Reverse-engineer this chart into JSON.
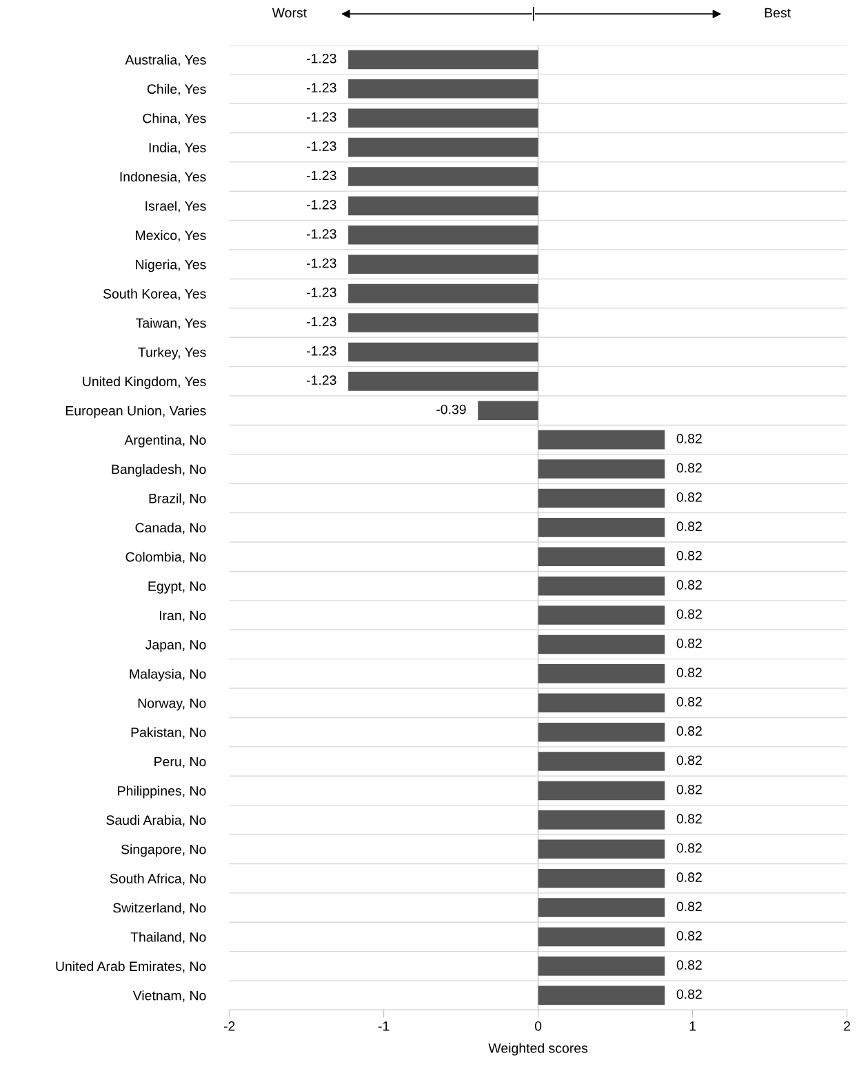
{
  "chart_data": {
    "type": "bar",
    "orientation": "horizontal",
    "xlabel": "Weighted scores",
    "categories": [
      "Australia, Yes",
      "Chile, Yes",
      "China, Yes",
      "India, Yes",
      "Indonesia, Yes",
      "Israel, Yes",
      "Mexico, Yes",
      "Nigeria, Yes",
      "South Korea, Yes",
      "Taiwan, Yes",
      "Turkey, Yes",
      "United Kingdom, Yes",
      "European Union, Varies",
      "Argentina, No",
      "Bangladesh, No",
      "Brazil, No",
      "Canada, No",
      "Colombia, No",
      "Egypt, No",
      "Iran, No",
      "Japan, No",
      "Malaysia, No",
      "Norway, No",
      "Pakistan, No",
      "Peru, No",
      "Philippines, No",
      "Saudi Arabia, No",
      "Singapore, No",
      "South Africa, No",
      "Switzerland, No",
      "Thailand, No",
      "United Arab Emirates, No",
      "Vietnam, No"
    ],
    "values": [
      -1.23,
      -1.23,
      -1.23,
      -1.23,
      -1.23,
      -1.23,
      -1.23,
      -1.23,
      -1.23,
      -1.23,
      -1.23,
      -1.23,
      -0.39,
      0.82,
      0.82,
      0.82,
      0.82,
      0.82,
      0.82,
      0.82,
      0.82,
      0.82,
      0.82,
      0.82,
      0.82,
      0.82,
      0.82,
      0.82,
      0.82,
      0.82,
      0.82,
      0.82,
      0.82
    ],
    "color": "#555555",
    "xlim": [
      -2,
      2
    ],
    "xticks": [
      -2,
      -1,
      0,
      1,
      2
    ],
    "data_labels": true,
    "grid": "y",
    "annotations": [
      "Worst",
      "Best"
    ]
  }
}
